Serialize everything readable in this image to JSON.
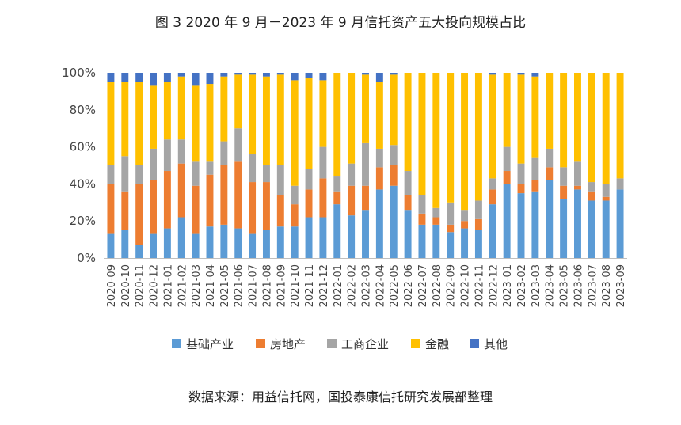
{
  "title": "图 3   2020 年 9 月－2023 年 9 月信托资产五大投向规模占比",
  "source": "数据来源：用益信托网，国投泰康信托研究发展部整理",
  "chart_data": {
    "type": "bar",
    "stacked": true,
    "ylim": [
      0,
      100
    ],
    "yticks": [
      "0%",
      "20%",
      "40%",
      "60%",
      "80%",
      "100%"
    ],
    "legend_position": "bottom",
    "grid": false,
    "categories": [
      "2020-09",
      "2020-10",
      "2020-11",
      "2020-12",
      "2021-01",
      "2021-02",
      "2021-03",
      "2021-04",
      "2021-05",
      "2021-06",
      "2021-07",
      "2021-08",
      "2021-09",
      "2021-10",
      "2021-11",
      "2021-12",
      "2022-01",
      "2022-02",
      "2022-03",
      "2022-04",
      "2022-05",
      "2022-06",
      "2022-07",
      "2022-08",
      "2022-09",
      "2022-10",
      "2022-11",
      "2022-12",
      "2023-01",
      "2023-02",
      "2023-03",
      "2023-04",
      "2023-05",
      "2023-06",
      "2023-07",
      "2023-08",
      "2023-09"
    ],
    "series": [
      {
        "name": "基础产业",
        "color": "#5B9BD5",
        "values": [
          13,
          15,
          7,
          13,
          16,
          22,
          13,
          17,
          18,
          16,
          13,
          15,
          17,
          17,
          22,
          22,
          29,
          23,
          26,
          37,
          39,
          26,
          18,
          18,
          14,
          16,
          15,
          29,
          40,
          35,
          36,
          42,
          32,
          37,
          31,
          31,
          37
        ]
      },
      {
        "name": "房地产",
        "color": "#ED7D31",
        "values": [
          27,
          21,
          33,
          29,
          31,
          29,
          26,
          28,
          32,
          36,
          28,
          26,
          17,
          12,
          15,
          21,
          7,
          16,
          13,
          12,
          11,
          8,
          6,
          4,
          4,
          4,
          6,
          8,
          7,
          5,
          6,
          7,
          7,
          2,
          5,
          2,
          0
        ]
      },
      {
        "name": "工商企业",
        "color": "#A5A5A5",
        "values": [
          10,
          19,
          10,
          17,
          17,
          13,
          13,
          7,
          13,
          18,
          15,
          9,
          16,
          10,
          11,
          17,
          8,
          12,
          23,
          10,
          11,
          13,
          10,
          5,
          12,
          6,
          10,
          6,
          13,
          11,
          12,
          10,
          10,
          13,
          5,
          7,
          6
        ]
      },
      {
        "name": "金融",
        "color": "#FFC000",
        "values": [
          45,
          40,
          45,
          34,
          31,
          34,
          41,
          42,
          35,
          29,
          43,
          48,
          49,
          57,
          49,
          36,
          56,
          49,
          37,
          36,
          38,
          53,
          66,
          73,
          70,
          74,
          69,
          56,
          40,
          48,
          44,
          41,
          51,
          48,
          59,
          60,
          57
        ]
      },
      {
        "name": "其他",
        "color": "#4472C4",
        "values": [
          5,
          5,
          5,
          7,
          5,
          2,
          7,
          6,
          2,
          1,
          1,
          2,
          1,
          4,
          3,
          4,
          0,
          0,
          1,
          5,
          1,
          0,
          0,
          0,
          0,
          0,
          0,
          1,
          0,
          1,
          2,
          0,
          0,
          0,
          0,
          0,
          0
        ]
      }
    ]
  }
}
